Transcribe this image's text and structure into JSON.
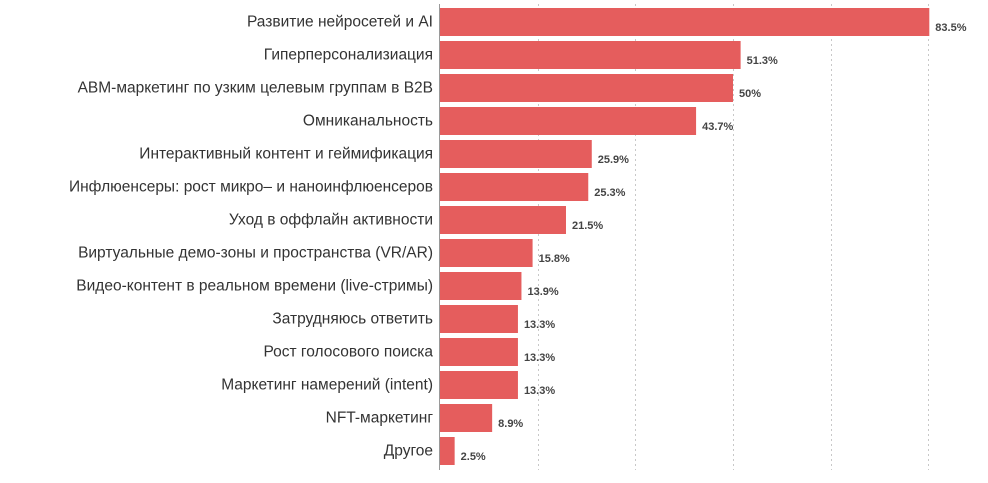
{
  "chart_data": {
    "type": "bar",
    "orientation": "horizontal",
    "title": "",
    "xlabel": "",
    "ylabel": "",
    "xlim": [
      0,
      100
    ],
    "grid": true,
    "value_suffix": "%",
    "bar_color": "#e55d5d",
    "categories": [
      "Развитие нейросетей и AI",
      "Гиперперсонализиация",
      "ABM-маркетинг по узким целевым группам в B2B",
      "Омниканальность",
      "Интерактивный контент и геймификация",
      "Инфлюенсеры: рост микро– и наноинфлюенсеров",
      "Уход в оффлайн активности",
      "Виртуальные демо-зоны и пространства (VR/AR)",
      "Видео-контент в реальном времени (live-стримы)",
      "Затрудняюсь ответить",
      "Рост голосового поиска",
      "Маркетинг намерений (intent)",
      "NFT-маркетинг",
      "Другое"
    ],
    "values": [
      83.5,
      51.3,
      50,
      43.7,
      25.9,
      25.3,
      21.5,
      15.8,
      13.9,
      13.3,
      13.3,
      13.3,
      8.9,
      2.5
    ],
    "value_labels": [
      "83.5%",
      "51.3%",
      "50%",
      "43.7%",
      "25.9%",
      "25.3%",
      "21.5%",
      "15.8%",
      "13.9%",
      "13.3%",
      "13.3%",
      "13.3%",
      "8.9%",
      "2.5%"
    ]
  }
}
